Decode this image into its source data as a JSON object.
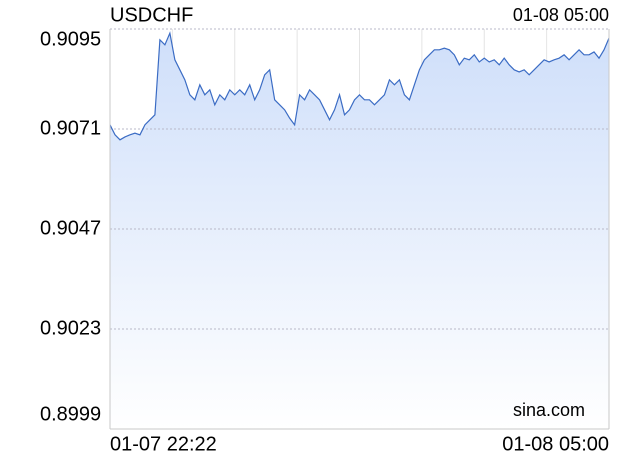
{
  "chart_data": {
    "type": "area",
    "title": "USDCHF",
    "time": "01-08 05:00",
    "watermark": "sina.com",
    "categories": [
      "01-07 22:22",
      null,
      null,
      null,
      null,
      null,
      null,
      null,
      null,
      null,
      null,
      null,
      null,
      null,
      null,
      null,
      null,
      null,
      null,
      null,
      null,
      null,
      null,
      null,
      null,
      null,
      null,
      null,
      null,
      null,
      null,
      null,
      null,
      null,
      null,
      null,
      null,
      null,
      null,
      null,
      null,
      null,
      null,
      null,
      null,
      null,
      null,
      null,
      null,
      null,
      null,
      null,
      null,
      null,
      null,
      null,
      null,
      null,
      null,
      null,
      null,
      null,
      null,
      null,
      null,
      null,
      null,
      null,
      null,
      null,
      null,
      null,
      null,
      null,
      null,
      null,
      null,
      null,
      null,
      null,
      null,
      null,
      null,
      null,
      null,
      null,
      null,
      null,
      null,
      null,
      null,
      null,
      null,
      null,
      null,
      null,
      null,
      null,
      null,
      null,
      "01-08 05:00"
    ],
    "values": [
      0.9072,
      0.90696,
      0.90684,
      0.90691,
      0.90696,
      0.907,
      0.90696,
      0.9072,
      0.90732,
      0.90744,
      0.90924,
      0.90912,
      0.9094,
      0.90876,
      0.90852,
      0.90828,
      0.90792,
      0.9078,
      0.90816,
      0.90792,
      0.90804,
      0.90768,
      0.90792,
      0.9078,
      0.90804,
      0.90792,
      0.90804,
      0.90792,
      0.90816,
      0.9078,
      0.90804,
      0.9084,
      0.90852,
      0.9078,
      0.90768,
      0.90756,
      0.90736,
      0.9072,
      0.90792,
      0.9078,
      0.90804,
      0.90792,
      0.9078,
      0.90756,
      0.90732,
      0.90756,
      0.90792,
      0.90744,
      0.90756,
      0.9078,
      0.90792,
      0.9078,
      0.9078,
      0.90768,
      0.9078,
      0.90792,
      0.90828,
      0.90816,
      0.90828,
      0.90792,
      0.9078,
      0.90816,
      0.90852,
      0.90876,
      0.90888,
      0.909,
      0.909,
      0.90904,
      0.909,
      0.90888,
      0.90864,
      0.9088,
      0.90876,
      0.90888,
      0.90871,
      0.9088,
      0.90871,
      0.90876,
      0.90864,
      0.9088,
      0.90864,
      0.90852,
      0.90847,
      0.90852,
      0.9084,
      0.90852,
      0.90864,
      0.90876,
      0.90871,
      0.90876,
      0.9088,
      0.90888,
      0.90876,
      0.90888,
      0.909,
      0.90888,
      0.90888,
      0.90895,
      0.9088,
      0.909,
      0.90928
    ],
    "color": "#3b6cc4",
    "ylim": [
      0.8999,
      0.9095
    ],
    "yticks": [
      0.9095,
      0.9071,
      0.9047,
      0.9023,
      0.8999
    ],
    "ytick_colors": [
      "#009900",
      "#009900",
      "#000000",
      "#dd0000",
      "#dd0000"
    ],
    "grid": true
  }
}
